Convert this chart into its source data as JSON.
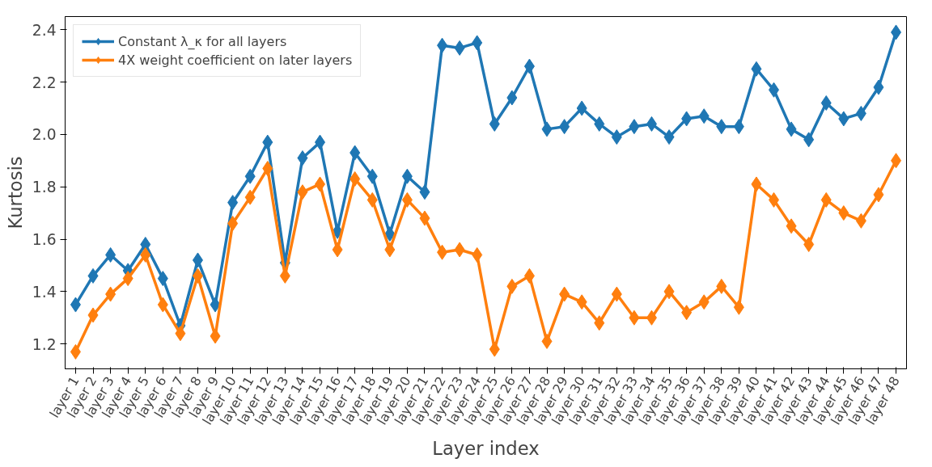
{
  "chart_data": {
    "type": "line",
    "xlabel": "Layer index",
    "ylabel": "Kurtosis",
    "categories": [
      "layer 1",
      "layer 2",
      "layer 3",
      "layer 4",
      "layer 5",
      "layer 6",
      "layer 7",
      "layer 8",
      "layer 9",
      "layer 10",
      "layer 11",
      "layer 12",
      "layer 13",
      "layer 14",
      "layer 15",
      "layer 16",
      "layer 17",
      "layer 18",
      "layer 19",
      "layer 20",
      "layer 21",
      "layer 22",
      "layer 23",
      "layer 24",
      "layer 25",
      "layer 26",
      "layer 27",
      "layer 28",
      "layer 29",
      "layer 30",
      "layer 31",
      "layer 32",
      "layer 33",
      "layer 34",
      "layer 35",
      "layer 36",
      "layer 37",
      "layer 38",
      "layer 39",
      "layer 40",
      "layer 41",
      "layer 42",
      "layer 43",
      "layer 44",
      "layer 45",
      "layer 46",
      "layer 47",
      "layer 48"
    ],
    "series": [
      {
        "name": "Constant λ_κ for all layers",
        "color": "#1f77b4",
        "values": [
          1.35,
          1.46,
          1.54,
          1.48,
          1.58,
          1.45,
          1.27,
          1.52,
          1.35,
          1.74,
          1.84,
          1.97,
          1.51,
          1.91,
          1.97,
          1.63,
          1.93,
          1.84,
          1.62,
          1.84,
          1.78,
          2.34,
          2.33,
          2.35,
          2.04,
          2.14,
          2.26,
          2.02,
          2.03,
          2.1,
          2.04,
          1.99,
          2.03,
          2.04,
          1.99,
          2.06,
          2.07,
          2.03,
          2.03,
          2.25,
          2.17,
          2.02,
          1.98,
          2.12,
          2.06,
          2.08,
          2.18,
          2.39
        ]
      },
      {
        "name": "4X weight coefficient on later layers",
        "color": "#ff7f0e",
        "values": [
          1.17,
          1.31,
          1.39,
          1.45,
          1.54,
          1.35,
          1.24,
          1.46,
          1.23,
          1.66,
          1.76,
          1.87,
          1.46,
          1.78,
          1.81,
          1.56,
          1.83,
          1.75,
          1.56,
          1.75,
          1.68,
          1.55,
          1.56,
          1.54,
          1.18,
          1.42,
          1.46,
          1.21,
          1.39,
          1.36,
          1.28,
          1.39,
          1.3,
          1.3,
          1.4,
          1.32,
          1.36,
          1.42,
          1.34,
          1.81,
          1.75,
          1.65,
          1.58,
          1.75,
          1.7,
          1.67,
          1.77,
          1.9
        ]
      }
    ],
    "ylim": [
      1.105,
      2.45
    ],
    "yticks": [
      1.2,
      1.4,
      1.6,
      1.8,
      {
        "value": 2,
        "label": "2.0"
      },
      2.2,
      2.4
    ],
    "legend": "top left",
    "grid": false,
    "marker": "diamond",
    "line_style": "solid"
  }
}
